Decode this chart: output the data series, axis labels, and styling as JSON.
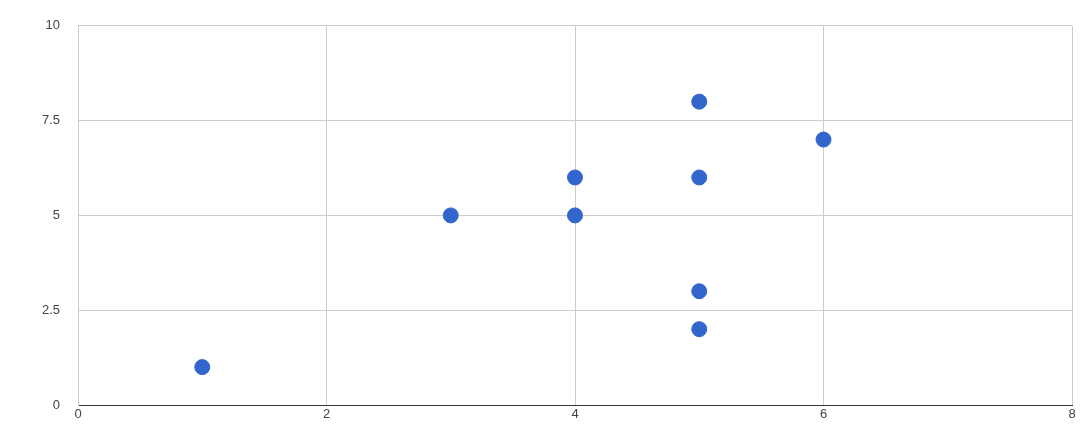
{
  "chart_data": {
    "type": "scatter",
    "x": [
      1,
      3,
      4,
      4,
      5,
      5,
      5,
      5,
      6
    ],
    "series": [
      {
        "color": "#3366cc",
        "values": [
          1,
          5,
          6,
          5,
          8,
          6,
          3,
          2,
          7
        ]
      }
    ],
    "xlim": [
      0,
      8
    ],
    "xticks": [
      0,
      2,
      4,
      6,
      8
    ],
    "ylim": [
      0,
      10
    ],
    "yticks": [
      0,
      2.5,
      5,
      7.5,
      10
    ],
    "grid": true,
    "marker": "circle"
  }
}
